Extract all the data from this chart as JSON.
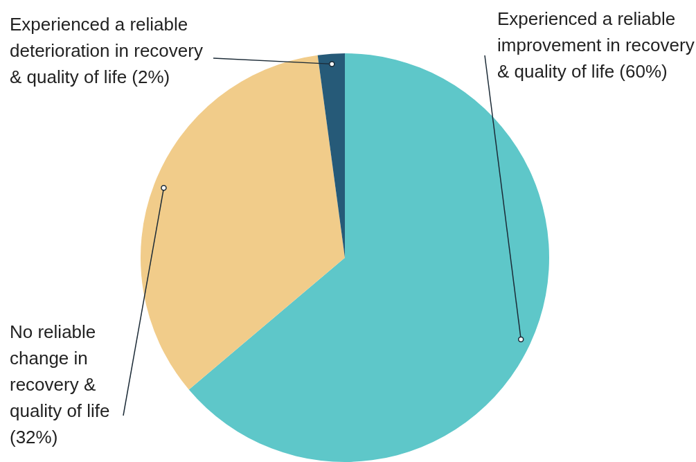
{
  "chart_data": {
    "type": "pie",
    "categories": [
      "Experienced a reliable improvement in recovery & quality of life",
      "No reliable change in recovery & quality of life",
      "Experienced a reliable deterioration in recovery & quality of life"
    ],
    "values": [
      60,
      32,
      2
    ],
    "value_labels": [
      "(60%)",
      "(32%)",
      "(2%)"
    ],
    "colors": [
      "#5ec7c9",
      "#f1cc8a",
      "#265a78"
    ]
  }
}
